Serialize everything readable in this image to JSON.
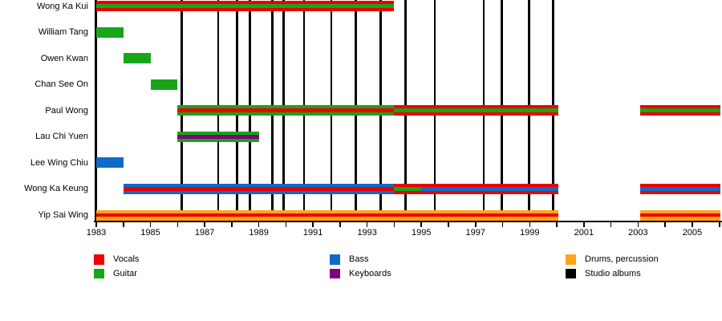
{
  "chart_data": {
    "type": "timeline",
    "x_axis": {
      "min_year": 1983,
      "max_year": 2006,
      "tick_label_years": [
        1983,
        1985,
        1987,
        1989,
        1991,
        1993,
        1995,
        1997,
        1999,
        2001,
        2003,
        2005
      ],
      "minor_tick_step": 1
    },
    "members": [
      {
        "name": "Wong Ka Kui",
        "segments": [
          {
            "from": 1983,
            "to": 1994,
            "role": "vocals",
            "secondary": "guitar"
          }
        ]
      },
      {
        "name": "William Tang",
        "segments": [
          {
            "from": 1983,
            "to": 1984,
            "role": "guitar"
          }
        ]
      },
      {
        "name": "Owen Kwan",
        "segments": [
          {
            "from": 1984,
            "to": 1985,
            "role": "guitar"
          }
        ]
      },
      {
        "name": "Chan See On",
        "segments": [
          {
            "from": 1985,
            "to": 1986,
            "role": "guitar"
          }
        ]
      },
      {
        "name": "Paul Wong",
        "segments": [
          {
            "from": 1986,
            "to": 1994,
            "role": "guitar",
            "secondary": "vocals"
          },
          {
            "from": 1994,
            "to": 2000.07,
            "role": "vocals",
            "secondary": "guitar"
          },
          {
            "from": 2003.07,
            "to": 2006.05,
            "role": "vocals",
            "secondary": "guitar"
          }
        ]
      },
      {
        "name": "Lau Chi Yuen",
        "segments": [
          {
            "from": 1986,
            "to": 1989,
            "role": "guitar",
            "secondary": "keyboards"
          }
        ]
      },
      {
        "name": "Lee Wing Chiu",
        "segments": [
          {
            "from": 1983,
            "to": 1984,
            "role": "bass"
          }
        ]
      },
      {
        "name": "Wong Ka Keung",
        "segments": [
          {
            "from": 1984,
            "to": 1994,
            "role": "bass",
            "secondary": "vocals"
          },
          {
            "from": 1994,
            "to": 1995,
            "role": "vocals",
            "secondary": "guitar"
          },
          {
            "from": 1995,
            "to": 2000.07,
            "role": "vocals",
            "secondary": "bass"
          },
          {
            "from": 2003.07,
            "to": 2006.05,
            "role": "vocals",
            "secondary": "bass"
          }
        ]
      },
      {
        "name": "Yip Sai Wing",
        "segments": [
          {
            "from": 1983,
            "to": 2000.07,
            "role": "drums",
            "secondary": "vocals"
          },
          {
            "from": 2003.07,
            "to": 2006.05,
            "role": "drums",
            "secondary": "vocals"
          }
        ]
      }
    ],
    "album_years": [
      1986.15,
      1987.5,
      1988.2,
      1988.67,
      1989.5,
      1989.92,
      1990.67,
      1991.68,
      1992.58,
      1993.5,
      1994.42,
      1995.5,
      1997.3,
      1997.97,
      1998.98,
      1999.87
    ],
    "role_colors": {
      "vocals": "#ee0000",
      "guitar": "#18a518",
      "bass": "#0f6bc9",
      "keyboards": "#800080",
      "drums": "#ffa319",
      "albums": "#000000"
    },
    "legend": [
      {
        "label": "Vocals",
        "role": "vocals"
      },
      {
        "label": "Guitar",
        "role": "guitar"
      },
      {
        "label": "Bass",
        "role": "bass"
      },
      {
        "label": "Keyboards",
        "role": "keyboards"
      },
      {
        "label": "Drums, percussion",
        "role": "drums"
      },
      {
        "label": "Studio albums",
        "role": "albums"
      }
    ]
  }
}
